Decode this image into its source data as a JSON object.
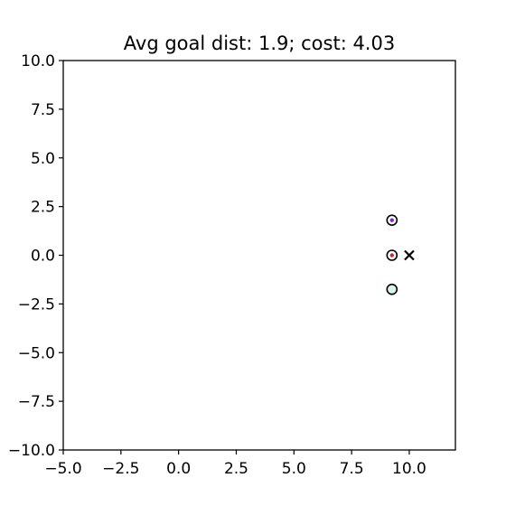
{
  "chart_data": {
    "type": "scatter",
    "title": "Avg goal dist: 1.9; cost: 4.03",
    "xlabel": "",
    "ylabel": "",
    "xlim": [
      -5,
      12
    ],
    "ylim": [
      -10,
      10
    ],
    "x_ticks": [
      -5.0,
      -2.5,
      0.0,
      2.5,
      5.0,
      7.5,
      10.0
    ],
    "y_ticks": [
      -10.0,
      -7.5,
      -5.0,
      -2.5,
      0.0,
      2.5,
      5.0,
      7.5,
      10.0
    ],
    "x_tick_labels": [
      "−5.0",
      "−2.5",
      "0.0",
      "2.5",
      "5.0",
      "7.5",
      "10.0"
    ],
    "y_tick_labels": [
      "−10.0",
      "−7.5",
      "−5.0",
      "−2.5",
      "0.0",
      "2.5",
      "5.0",
      "7.5",
      "10.0"
    ],
    "grid": false,
    "points": [
      {
        "x": 9.25,
        "y": 1.8,
        "marker": "circle",
        "edge_color": "#000000",
        "fill_color": "#ffffff",
        "dot_color": "#7b2fbe"
      },
      {
        "x": 9.25,
        "y": 0.0,
        "marker": "circle",
        "edge_color": "#000000",
        "fill_color": "#ffffff",
        "dot_color": "#d62728"
      },
      {
        "x": 9.25,
        "y": -1.75,
        "marker": "circle",
        "edge_color": "#000000",
        "fill_color": "#d8f5e8",
        "dot_color": ""
      },
      {
        "x": 10.0,
        "y": 0.0,
        "marker": "x",
        "edge_color": "#000000",
        "fill_color": "",
        "dot_color": ""
      }
    ]
  }
}
